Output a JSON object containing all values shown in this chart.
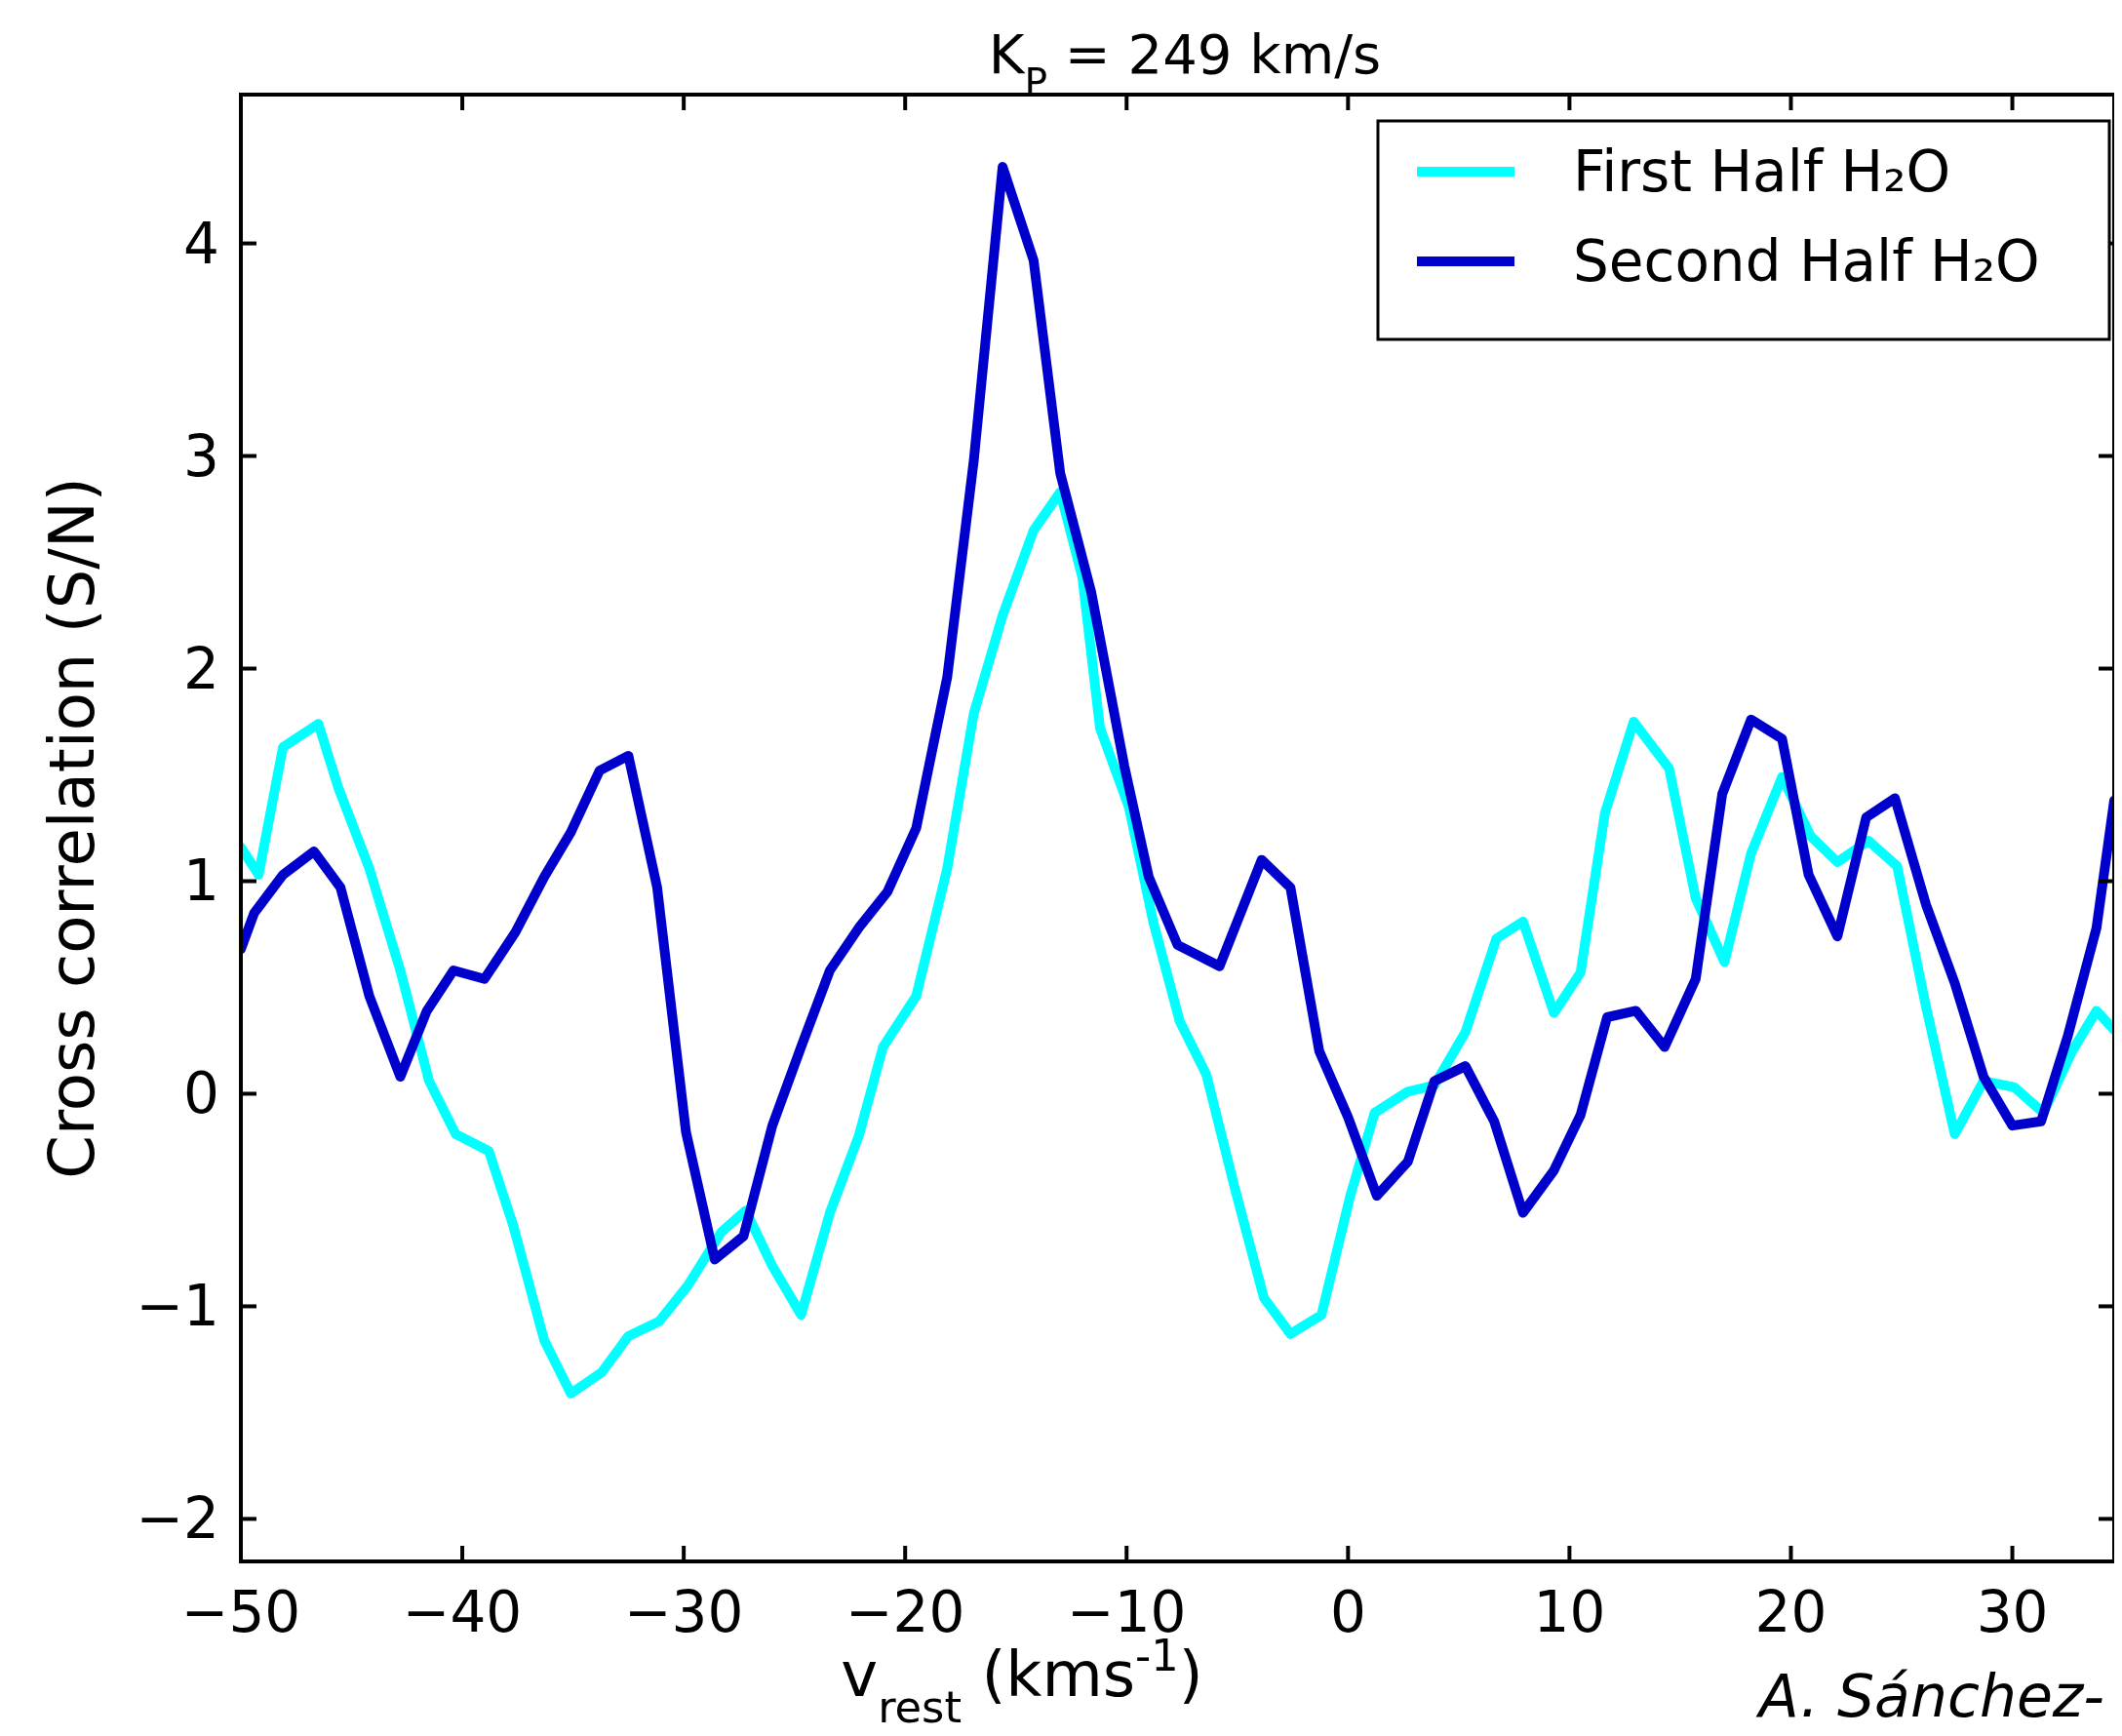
{
  "chart_data": {
    "type": "line",
    "title": "K$_{P}$ = 249 km/s",
    "xlabel": "v$_{rest}$ (kms$^{-1}$)",
    "ylabel": "Cross correlation (S/N)",
    "xlim": [
      -50,
      34.6
    ],
    "xticks": [
      {
        "value": -50,
        "label": "−50"
      },
      {
        "value": -40,
        "label": "−40"
      },
      {
        "value": -30,
        "label": "−30"
      },
      {
        "value": -20,
        "label": "−20"
      },
      {
        "value": -10,
        "label": "−10"
      },
      0,
      10,
      20,
      30
    ],
    "ylim": [
      -2.2,
      4.7
    ],
    "yticks": [
      {
        "value": -2,
        "label": "−2"
      },
      {
        "value": -1,
        "label": "−1"
      },
      0,
      1,
      2,
      3,
      4
    ],
    "legend": "top right",
    "grid": false,
    "line_style": "solid",
    "marker": "none",
    "annotations": [
      "A. Sánchez-"
    ],
    "series": [
      {
        "name": "First Half H₂O",
        "color": "#00ffff",
        "x": [
          -50,
          -49.2,
          -48.1,
          -46.5,
          -45.6,
          -44.2,
          -42.8,
          -41.5,
          -40.3,
          -38.8,
          -37.7,
          -36.3,
          -35.1,
          -33.7,
          -32.5,
          -31.1,
          -29.8,
          -28.3,
          -27.2,
          -26.0,
          -24.7,
          -23.4,
          -22.1,
          -21.0,
          -19.5,
          -18.1,
          -16.9,
          -15.6,
          -14.2,
          -13.0,
          -12.0,
          -11.2,
          -9.9,
          -8.8,
          -7.6,
          -6.4,
          -5.1,
          -3.8,
          -2.6,
          -1.2,
          0.1,
          1.2,
          2.7,
          3.9,
          5.3,
          6.7,
          7.9,
          9.3,
          10.5,
          11.6,
          12.9,
          14.5,
          15.7,
          17.0,
          18.2,
          19.6,
          20.9,
          22.1,
          23.5,
          24.8,
          26.1,
          27.4,
          28.7,
          30.1,
          31.4,
          32.7,
          33.8,
          34.6
        ],
        "values": [
          1.16,
          1.03,
          1.63,
          1.74,
          1.44,
          1.06,
          0.58,
          0.06,
          -0.19,
          -0.27,
          -0.62,
          -1.16,
          -1.41,
          -1.31,
          -1.14,
          -1.07,
          -0.9,
          -0.65,
          -0.55,
          -0.81,
          -1.04,
          -0.56,
          -0.2,
          0.22,
          0.46,
          1.06,
          1.79,
          2.25,
          2.65,
          2.83,
          2.43,
          1.72,
          1.35,
          0.81,
          0.34,
          0.09,
          -0.45,
          -0.96,
          -1.13,
          -1.04,
          -0.48,
          -0.09,
          0.01,
          0.04,
          0.29,
          0.73,
          0.81,
          0.38,
          0.57,
          1.32,
          1.75,
          1.53,
          0.92,
          0.62,
          1.13,
          1.49,
          1.21,
          1.09,
          1.19,
          1.07,
          0.41,
          -0.19,
          0.06,
          0.03,
          -0.09,
          0.2,
          0.39,
          0.3
        ]
      },
      {
        "name": "Second Half H₂O",
        "color": "#0000cc",
        "x": [
          -50,
          -49.4,
          -48.1,
          -46.7,
          -45.5,
          -44.2,
          -42.8,
          -41.6,
          -40.4,
          -39.0,
          -37.6,
          -36.3,
          -35.1,
          -33.8,
          -32.5,
          -31.2,
          -29.9,
          -28.6,
          -27.3,
          -26.0,
          -24.7,
          -23.4,
          -22.1,
          -20.8,
          -19.5,
          -18.1,
          -16.9,
          -15.6,
          -14.2,
          -13.0,
          -11.6,
          -10.1,
          -9.0,
          -7.7,
          -5.8,
          -3.9,
          -2.6,
          -1.3,
          0.0,
          1.3,
          2.7,
          3.9,
          5.3,
          6.6,
          7.9,
          9.3,
          10.5,
          11.7,
          13.0,
          14.3,
          15.7,
          16.9,
          18.2,
          19.6,
          20.8,
          22.1,
          23.4,
          24.7,
          26.1,
          27.4,
          28.7,
          30.0,
          31.3,
          32.5,
          33.8,
          34.6
        ],
        "values": [
          0.68,
          0.85,
          1.03,
          1.14,
          0.97,
          0.46,
          0.08,
          0.39,
          0.58,
          0.54,
          0.76,
          1.02,
          1.23,
          1.52,
          1.59,
          0.97,
          -0.18,
          -0.78,
          -0.67,
          -0.15,
          0.22,
          0.58,
          0.78,
          0.95,
          1.25,
          1.96,
          2.98,
          4.36,
          3.92,
          2.92,
          2.36,
          1.54,
          1.02,
          0.7,
          0.6,
          1.1,
          0.97,
          0.2,
          -0.11,
          -0.48,
          -0.32,
          0.06,
          0.13,
          -0.13,
          -0.56,
          -0.36,
          -0.1,
          0.36,
          0.39,
          0.22,
          0.54,
          1.41,
          1.76,
          1.67,
          1.03,
          0.74,
          1.3,
          1.39,
          0.89,
          0.52,
          0.08,
          -0.15,
          -0.13,
          0.27,
          0.78,
          1.38
        ]
      }
    ]
  }
}
